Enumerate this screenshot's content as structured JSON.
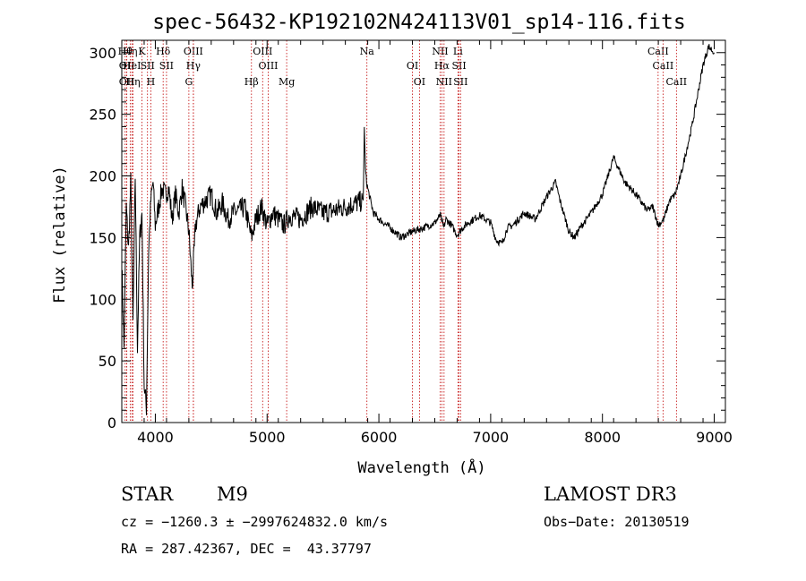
{
  "chart_data": {
    "type": "line",
    "title": "spec-56432-KP192102N424113V01_sp14-116.fits",
    "xlabel": "Wavelength (Å)",
    "ylabel": "Flux (relative)",
    "xlim": [
      3700,
      9100
    ],
    "ylim": [
      0,
      310
    ],
    "xticks": [
      4000,
      5000,
      6000,
      7000,
      8000,
      9000
    ],
    "yticks": [
      0,
      50,
      100,
      150,
      200,
      250,
      300
    ],
    "spectrum": {
      "x": [
        3700,
        3720,
        3740,
        3760,
        3780,
        3800,
        3820,
        3840,
        3860,
        3880,
        3900,
        3920,
        3940,
        3960,
        3980,
        4000,
        4030,
        4060,
        4090,
        4120,
        4150,
        4180,
        4210,
        4240,
        4270,
        4300,
        4330,
        4360,
        4400,
        4450,
        4500,
        4550,
        4600,
        4650,
        4700,
        4750,
        4800,
        4860,
        4900,
        4950,
        5000,
        5050,
        5100,
        5150,
        5200,
        5300,
        5400,
        5500,
        5600,
        5700,
        5800,
        5860,
        5870,
        5880,
        5890,
        5900,
        5950,
        6000,
        6100,
        6200,
        6300,
        6400,
        6500,
        6550,
        6580,
        6600,
        6650,
        6700,
        6750,
        6800,
        6900,
        7000,
        7050,
        7100,
        7150,
        7200,
        7300,
        7400,
        7500,
        7580,
        7620,
        7700,
        7750,
        7800,
        7900,
        8000,
        8100,
        8150,
        8200,
        8250,
        8300,
        8400,
        8450,
        8500,
        8550,
        8600,
        8650,
        8700,
        8750,
        8800,
        8850,
        8900,
        8950,
        9000
      ],
      "y": [
        130,
        60,
        175,
        140,
        195,
        80,
        200,
        60,
        150,
        170,
        30,
        12,
        140,
        180,
        195,
        160,
        175,
        190,
        185,
        190,
        165,
        185,
        170,
        190,
        175,
        155,
        110,
        160,
        175,
        180,
        185,
        170,
        178,
        165,
        170,
        172,
        175,
        150,
        165,
        175,
        160,
        170,
        165,
        160,
        168,
        165,
        175,
        170,
        172,
        175,
        178,
        180,
        238,
        205,
        195,
        190,
        170,
        165,
        158,
        150,
        155,
        158,
        162,
        168,
        158,
        165,
        160,
        152,
        158,
        162,
        168,
        162,
        148,
        145,
        158,
        160,
        170,
        165,
        183,
        195,
        180,
        155,
        150,
        158,
        170,
        185,
        215,
        205,
        195,
        190,
        185,
        172,
        175,
        160,
        165,
        180,
        185,
        200,
        220,
        240,
        265,
        290,
        305,
        300
      ]
    },
    "line_marks": [
      {
        "x": 3730,
        "label": "Hθ"
      },
      {
        "x": 3745,
        "label": "OII"
      },
      {
        "x": 3745,
        "label": "OII"
      },
      {
        "x": 3775,
        "label": "Hη"
      },
      {
        "x": 3790,
        "label": "HeI"
      },
      {
        "x": 3800,
        "label": "Hη"
      },
      {
        "x": 3880,
        "label": "K"
      },
      {
        "x": 3930,
        "label": "SII"
      },
      {
        "x": 3960,
        "label": "H"
      },
      {
        "x": 4070,
        "label": "Hδ"
      },
      {
        "x": 4100,
        "label": "SII"
      },
      {
        "x": 4300,
        "label": "G"
      },
      {
        "x": 4340,
        "label": "OIII"
      },
      {
        "x": 4340,
        "label": "Hγ"
      },
      {
        "x": 4860,
        "label": "Hβ"
      },
      {
        "x": 4960,
        "label": "OIII"
      },
      {
        "x": 5010,
        "label": "OIII"
      },
      {
        "x": 5175,
        "label": "Mg"
      },
      {
        "x": 5893,
        "label": "Na"
      },
      {
        "x": 6300,
        "label": "OI"
      },
      {
        "x": 6363,
        "label": "OI"
      },
      {
        "x": 6548,
        "label": "NII"
      },
      {
        "x": 6563,
        "label": "Hα"
      },
      {
        "x": 6583,
        "label": "NII"
      },
      {
        "x": 6707,
        "label": "Li"
      },
      {
        "x": 6717,
        "label": "SII"
      },
      {
        "x": 6731,
        "label": "SII"
      },
      {
        "x": 8498,
        "label": "CaII"
      },
      {
        "x": 8542,
        "label": "CaII"
      },
      {
        "x": 8662,
        "label": "CaII"
      }
    ],
    "info": {
      "class": "STAR",
      "subclass": "M9",
      "survey": "LAMOST DR3",
      "cz": "cz = −1260.3 ± −2997624832.0 km/s",
      "obs_date": "Obs−Date: 20130519",
      "radec": "RA = 287.42367, DEC =  43.37797"
    },
    "colors": {
      "spectrum": "#000000",
      "line_marks": "#c00000",
      "axes": "#000000"
    }
  }
}
